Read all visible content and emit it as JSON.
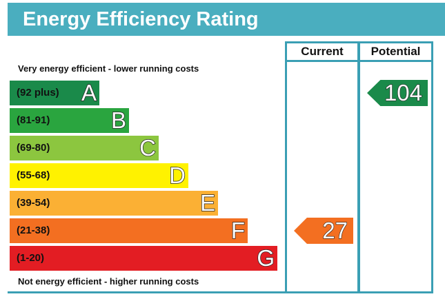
{
  "title": "Energy Efficiency Rating",
  "columns": {
    "current": "Current",
    "potential": "Potential"
  },
  "top_caption": "Very energy efficient - lower running costs",
  "bottom_caption": "Not energy efficient - higher running costs",
  "chart_data": {
    "type": "bar",
    "title": "Energy Efficiency Rating",
    "categories": [
      "A",
      "B",
      "C",
      "D",
      "E",
      "F",
      "G"
    ],
    "bands": [
      {
        "letter": "A",
        "range": "(92 plus)",
        "min": 92,
        "max": null,
        "color": "#1a8a4a"
      },
      {
        "letter": "B",
        "range": "(81-91)",
        "min": 81,
        "max": 91,
        "color": "#2aa53f"
      },
      {
        "letter": "C",
        "range": "(69-80)",
        "min": 69,
        "max": 80,
        "color": "#8cc63f"
      },
      {
        "letter": "D",
        "range": "(55-68)",
        "min": 55,
        "max": 68,
        "color": "#fff200"
      },
      {
        "letter": "E",
        "range": "(39-54)",
        "min": 39,
        "max": 54,
        "color": "#fbb034"
      },
      {
        "letter": "F",
        "range": "(21-38)",
        "min": 21,
        "max": 38,
        "color": "#f36f21"
      },
      {
        "letter": "G",
        "range": "(1-20)",
        "min": 1,
        "max": 20,
        "color": "#e31d23"
      }
    ],
    "current": {
      "value": 27,
      "band": "F",
      "color": "#f36f21"
    },
    "potential": {
      "value": 104,
      "band": "A",
      "color": "#1a8a4a"
    }
  }
}
